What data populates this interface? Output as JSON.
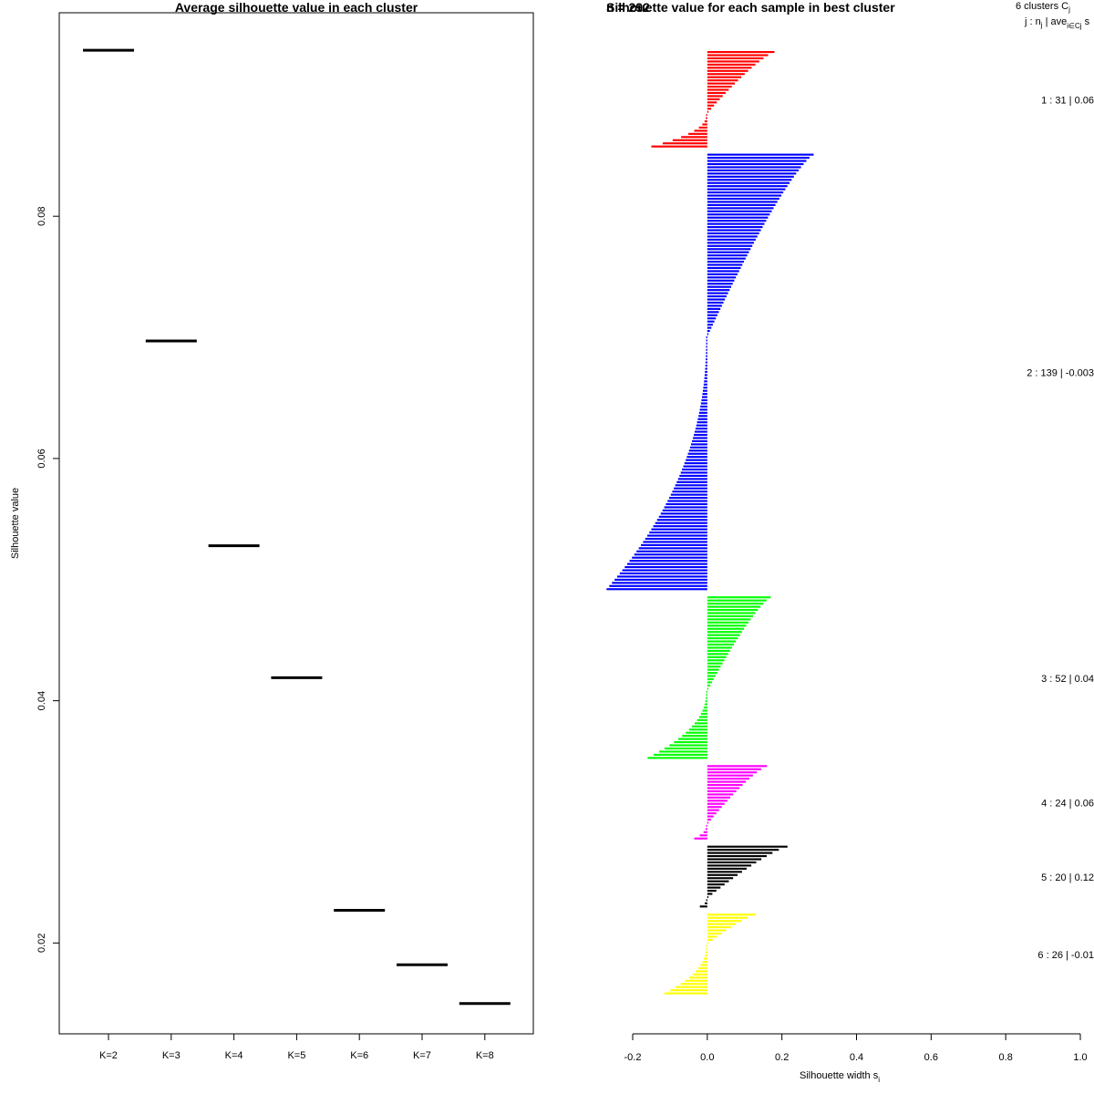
{
  "chart_data": [
    {
      "type": "scatter",
      "title": "Average silhouette value in each cluster",
      "xlabel": "",
      "ylabel": "Silhouette value",
      "categories": [
        "K=2",
        "K=3",
        "K=4",
        "K=5",
        "K=6",
        "K=7",
        "K=8"
      ],
      "values": [
        0.0937,
        0.0697,
        0.0528,
        0.0419,
        0.0227,
        0.0182,
        0.015
      ],
      "yticks": [
        "0.02",
        "0.04",
        "0.06",
        "0.08"
      ],
      "ylim": [
        0.0125,
        0.0968
      ],
      "grid": false,
      "color": "#000000"
    },
    {
      "type": "bar",
      "orientation": "horizontal",
      "title": "Silhouette value for each sample in best cluster",
      "title_overlap_fragment": "n = 292",
      "xlabel": "Silhouette width s",
      "xlabel_sub": "i",
      "xticks": [
        "-0.2",
        "0.0",
        "0.2",
        "0.4",
        "0.6",
        "0.8",
        "1.0"
      ],
      "xlim": [
        -0.2,
        1.0
      ],
      "legend_header": [
        "6  clusters  C",
        "j :  n",
        " | ave",
        " s"
      ],
      "clusters": [
        {
          "label": "1 :  31  |  0.06",
          "color": "#ff0000",
          "n": 31,
          "max": 0.18,
          "min": -0.15,
          "npos": 20
        },
        {
          "label": "2 :  139  |  -0.003",
          "color": "#0000ff",
          "n": 139,
          "max": 0.285,
          "min": -0.27,
          "npos": 58
        },
        {
          "label": "3 :  52  |  0.04",
          "color": "#00ff00",
          "n": 52,
          "max": 0.17,
          "min": -0.16,
          "npos": 30
        },
        {
          "label": "4 :  24  |  0.06",
          "color": "#ff00ff",
          "n": 24,
          "max": 0.16,
          "min": -0.035,
          "npos": 19
        },
        {
          "label": "5 :  20  |  0.12",
          "color": "#000000",
          "n": 20,
          "max": 0.215,
          "min": -0.02,
          "npos": 17
        },
        {
          "label": "6 :  26  |  -0.01",
          "color": "#ffff00",
          "n": 26,
          "max": 0.13,
          "min": -0.115,
          "npos": 10
        }
      ]
    }
  ]
}
